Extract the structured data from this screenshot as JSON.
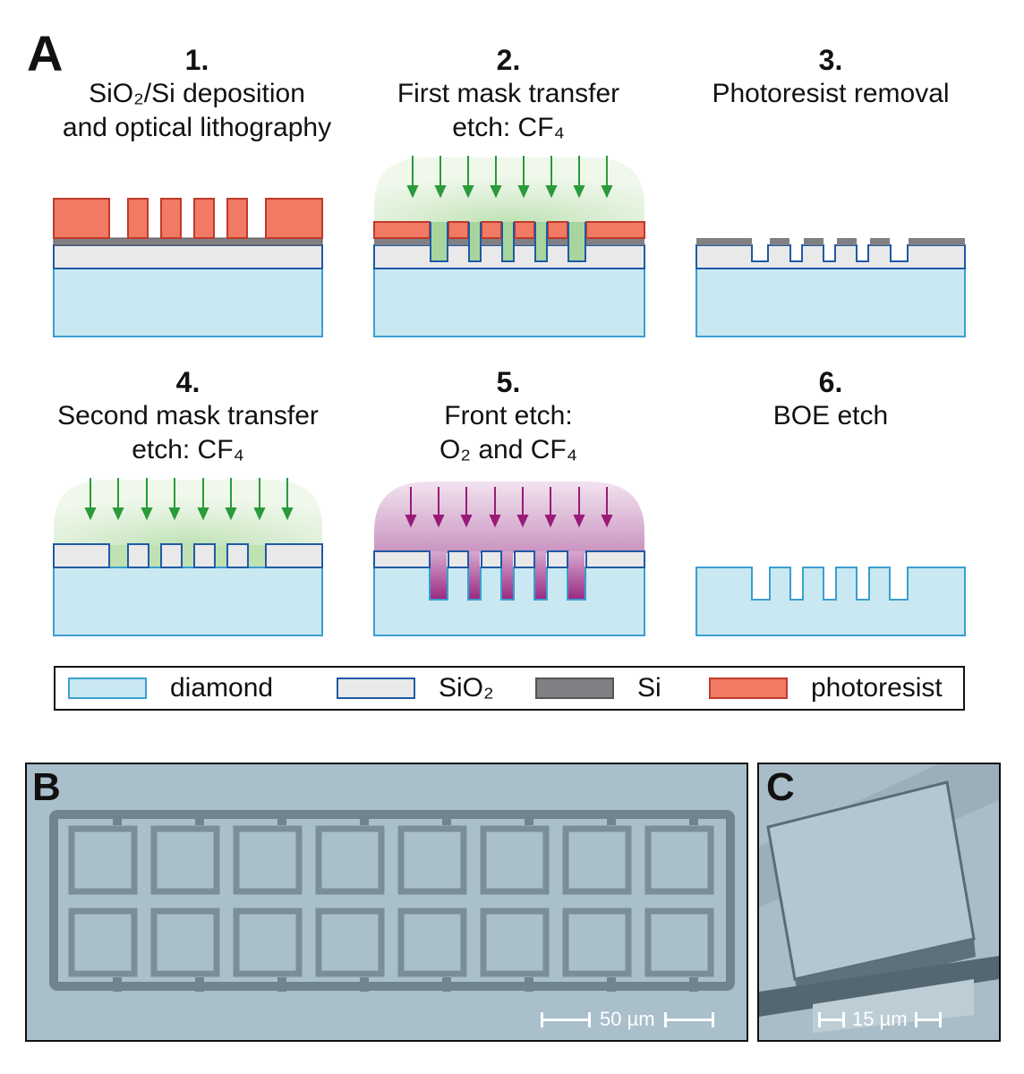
{
  "panel_a": {
    "letter": "A",
    "steps": [
      {
        "num": "1.",
        "line1": "SiO₂/Si deposition",
        "line2": "and optical lithography"
      },
      {
        "num": "2.",
        "line1": "First mask transfer",
        "line2": "etch: CF₄"
      },
      {
        "num": "3.",
        "line1": "Photoresist removal",
        "line2": ""
      },
      {
        "num": "4.",
        "line1": "Second mask transfer",
        "line2": "etch: CF₄"
      },
      {
        "num": "5.",
        "line1": "Front etch:",
        "line2": "O₂ and CF₄"
      },
      {
        "num": "6.",
        "line1": "BOE etch",
        "line2": ""
      }
    ]
  },
  "legend": [
    {
      "label": "diamond",
      "fill": "#c9e8f1",
      "stroke": "#3a9fd0"
    },
    {
      "label": "SiO₂",
      "fill": "#e9e9e9",
      "stroke": "#1f5aa6"
    },
    {
      "label": "Si",
      "fill": "#7f7f84",
      "stroke": "#555555"
    },
    {
      "label": "photoresist",
      "fill": "#f07a63",
      "stroke": "#c0392b"
    }
  ],
  "panel_b": {
    "letter": "B",
    "scale_label": "50 µm"
  },
  "panel_c": {
    "letter": "C",
    "scale_label": "15 µm"
  },
  "colors": {
    "diamond": "#c9e8f1",
    "diamond_edge": "#3a9fd0",
    "sio2": "#e9e9e9",
    "sio2_edge": "#1f5aa6",
    "si": "#7f7f84",
    "photoresist": "#f07a63",
    "photoresist_edge": "#c0392b",
    "cf4_arrow": "#2a9a3a",
    "o2_arrow": "#9a1a78",
    "sem_bg": "#a9bfca"
  }
}
